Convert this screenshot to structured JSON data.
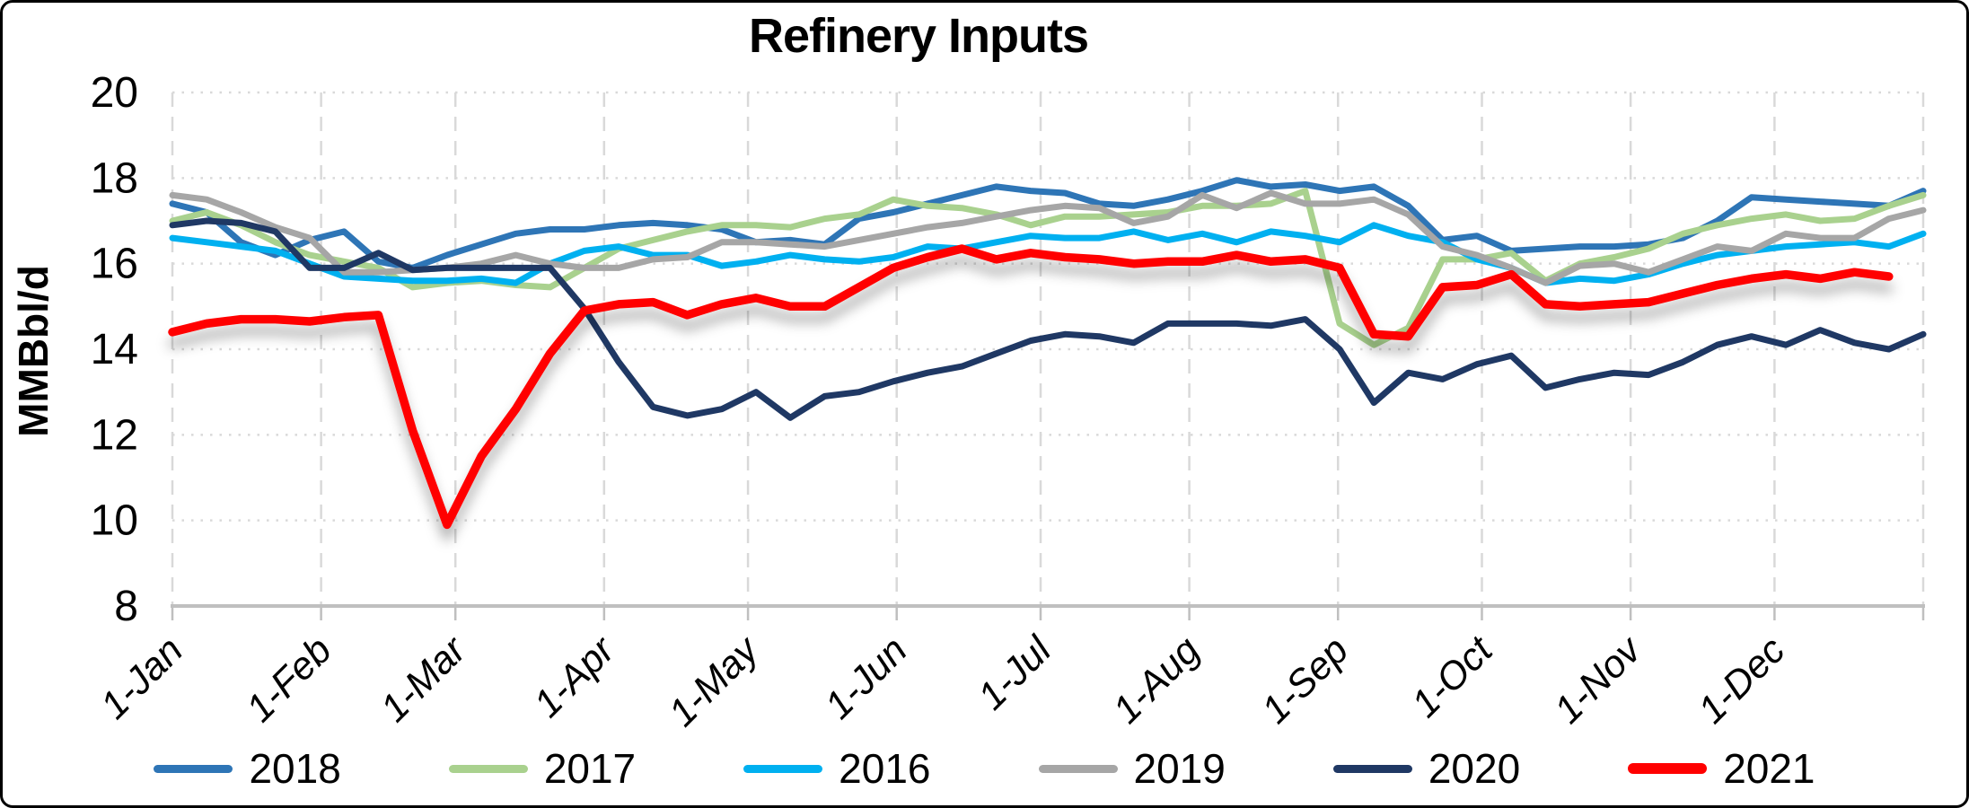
{
  "chart_data": {
    "type": "line",
    "title": "Refinery Inputs",
    "ylabel": "MMBbl/d",
    "xlabel": "",
    "ylim": [
      8,
      20
    ],
    "yticks": [
      20,
      18,
      16,
      14,
      12,
      10,
      8
    ],
    "categories": [
      "1-Jan",
      "1-Feb",
      "1-Mar",
      "1-Apr",
      "1-May",
      "1-Jun",
      "1-Jul",
      "1-Aug",
      "1-Sep",
      "1-Oct",
      "1-Nov",
      "1-Dec"
    ],
    "month_day_offsets": [
      0,
      31,
      59,
      90,
      120,
      151,
      181,
      212,
      243,
      273,
      304,
      334,
      365
    ],
    "x_unit": "weekly (52 points Jan-Dec)",
    "grid": "horizontal dotted + vertical dashed, light gray",
    "legend_position": "bottom",
    "series": [
      {
        "name": "2018",
        "color": "#2E75B6",
        "width": 7,
        "values": [
          17.4,
          17.2,
          16.5,
          16.2,
          16.55,
          16.75,
          16.05,
          15.9,
          16.2,
          16.45,
          16.7,
          16.8,
          16.8,
          16.9,
          16.95,
          16.9,
          16.8,
          16.5,
          16.55,
          16.45,
          17.05,
          17.2,
          17.4,
          17.6,
          17.8,
          17.7,
          17.65,
          17.4,
          17.35,
          17.5,
          17.7,
          17.95,
          17.8,
          17.85,
          17.7,
          17.8,
          17.35,
          16.55,
          16.65,
          16.3,
          16.35,
          16.4,
          16.4,
          16.45,
          16.6,
          17.0,
          17.55,
          17.5,
          17.45,
          17.4,
          17.35,
          17.7
        ]
      },
      {
        "name": "2017",
        "color": "#A9D18E",
        "width": 7,
        "values": [
          17.0,
          17.2,
          16.9,
          16.5,
          16.2,
          16.05,
          15.9,
          15.45,
          15.55,
          15.6,
          15.5,
          15.45,
          15.9,
          16.35,
          16.55,
          16.75,
          16.9,
          16.9,
          16.85,
          17.05,
          17.15,
          17.5,
          17.35,
          17.3,
          17.15,
          16.9,
          17.1,
          17.1,
          17.15,
          17.2,
          17.35,
          17.35,
          17.4,
          17.7,
          14.6,
          14.1,
          14.5,
          16.1,
          16.1,
          16.25,
          15.6,
          16.0,
          16.15,
          16.35,
          16.7,
          16.9,
          17.05,
          17.15,
          17.0,
          17.05,
          17.35,
          17.6
        ]
      },
      {
        "name": "2016",
        "color": "#00B0F0",
        "width": 7,
        "values": [
          16.6,
          16.5,
          16.4,
          16.3,
          16.0,
          15.7,
          15.65,
          15.6,
          15.6,
          15.65,
          15.55,
          16.0,
          16.3,
          16.4,
          16.2,
          16.2,
          15.95,
          16.05,
          16.2,
          16.1,
          16.05,
          16.15,
          16.4,
          16.35,
          16.5,
          16.65,
          16.6,
          16.6,
          16.75,
          16.55,
          16.7,
          16.5,
          16.75,
          16.65,
          16.5,
          16.9,
          16.65,
          16.5,
          16.1,
          15.9,
          15.55,
          15.65,
          15.6,
          15.75,
          16.0,
          16.2,
          16.3,
          16.4,
          16.45,
          16.5,
          16.4,
          16.7
        ]
      },
      {
        "name": "2019",
        "color": "#A6A6A6",
        "width": 7,
        "values": [
          17.6,
          17.5,
          17.2,
          16.85,
          16.6,
          15.8,
          15.8,
          15.85,
          15.9,
          16.0,
          16.2,
          16.0,
          15.9,
          15.9,
          16.1,
          16.15,
          16.5,
          16.5,
          16.45,
          16.4,
          16.55,
          16.7,
          16.85,
          16.95,
          17.1,
          17.25,
          17.35,
          17.3,
          16.95,
          17.1,
          17.6,
          17.3,
          17.65,
          17.4,
          17.4,
          17.5,
          17.15,
          16.4,
          16.2,
          15.9,
          15.55,
          15.95,
          16.0,
          15.8,
          16.1,
          16.4,
          16.3,
          16.7,
          16.6,
          16.6,
          17.05,
          17.25
        ]
      },
      {
        "name": "2020",
        "color": "#1F3864",
        "width": 7,
        "values": [
          16.9,
          17.0,
          16.95,
          16.75,
          15.9,
          15.9,
          16.25,
          15.85,
          15.9,
          15.9,
          15.9,
          15.9,
          14.95,
          13.7,
          12.65,
          12.45,
          12.6,
          13.0,
          12.4,
          12.9,
          13.0,
          13.25,
          13.45,
          13.6,
          13.9,
          14.2,
          14.35,
          14.3,
          14.15,
          14.6,
          14.6,
          14.6,
          14.55,
          14.7,
          14.0,
          12.75,
          13.45,
          13.3,
          13.65,
          13.85,
          13.1,
          13.3,
          13.45,
          13.4,
          13.7,
          14.1,
          14.3,
          14.1,
          14.45,
          14.15,
          14.0,
          14.35
        ]
      },
      {
        "name": "2021",
        "color": "#FF0000",
        "width": 9.5,
        "shadow": true,
        "values": [
          14.4,
          14.6,
          14.7,
          14.7,
          14.65,
          14.75,
          14.8,
          12.1,
          9.9,
          11.5,
          12.6,
          13.9,
          14.9,
          15.05,
          15.1,
          14.8,
          15.05,
          15.2,
          15.0,
          15.0,
          15.45,
          15.9,
          16.15,
          16.35,
          16.1,
          16.25,
          16.15,
          16.1,
          16.0,
          16.05,
          16.05,
          16.2,
          16.05,
          16.1,
          15.9,
          14.35,
          14.3,
          15.45,
          15.5,
          15.75,
          15.05,
          15.0,
          15.05,
          15.1,
          15.3,
          15.5,
          15.65,
          15.75,
          15.65,
          15.8,
          15.7
        ]
      }
    ]
  }
}
